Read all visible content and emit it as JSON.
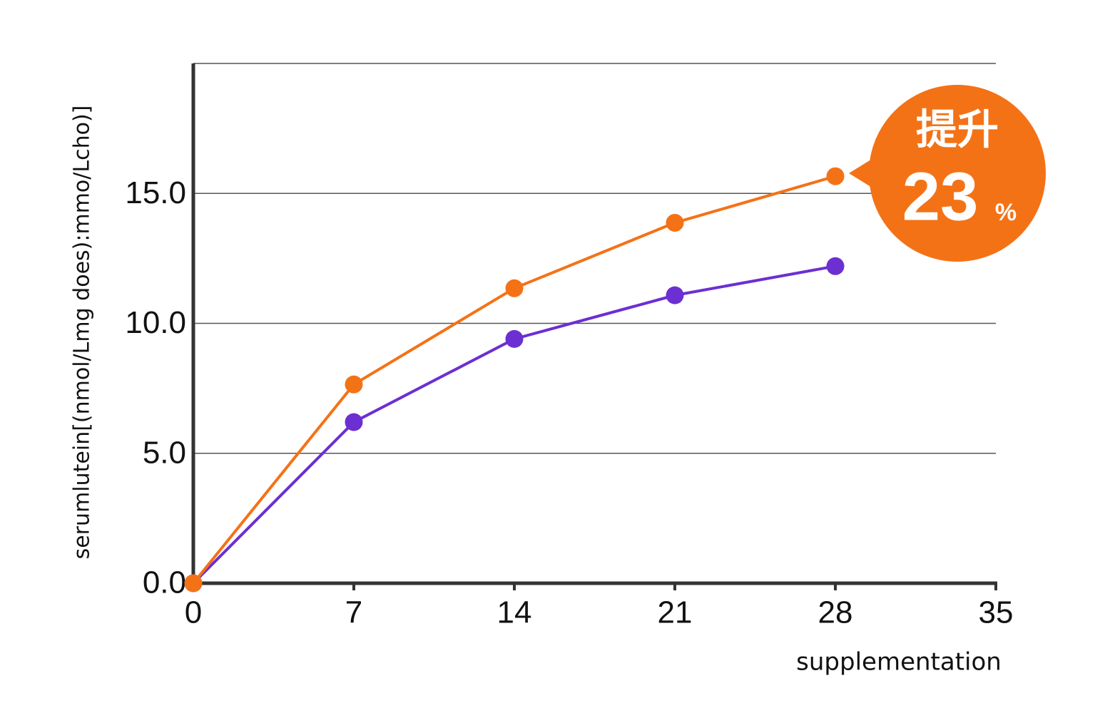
{
  "chart_data": {
    "type": "line",
    "x_label": "supplementation",
    "y_label": "serumlutein[(nmol/Lmg does):mmo/Lcho)]",
    "x": [
      0,
      7,
      14,
      21,
      28
    ],
    "series": [
      {
        "color": "#f47216",
        "values": [
          0,
          7.65,
          11.35,
          13.87,
          15.66
        ]
      },
      {
        "color": "#6c2fd1",
        "values": [
          0,
          6.2,
          9.4,
          11.08,
          12.2
        ]
      }
    ],
    "xlim": [
      0,
      35
    ],
    "xticks": [
      0,
      7,
      14,
      21,
      28,
      35
    ],
    "ylim": [
      0,
      20
    ],
    "yticks": [
      {
        "value": 0,
        "label": "0.0"
      },
      {
        "value": 5,
        "label": "5.0"
      },
      {
        "value": 10,
        "label": "10.0"
      },
      {
        "value": 15,
        "label": "15.0"
      }
    ],
    "grid": true,
    "annotation": {
      "text": "提升",
      "value": 23,
      "unit": "%",
      "color": "#f47216"
    }
  }
}
